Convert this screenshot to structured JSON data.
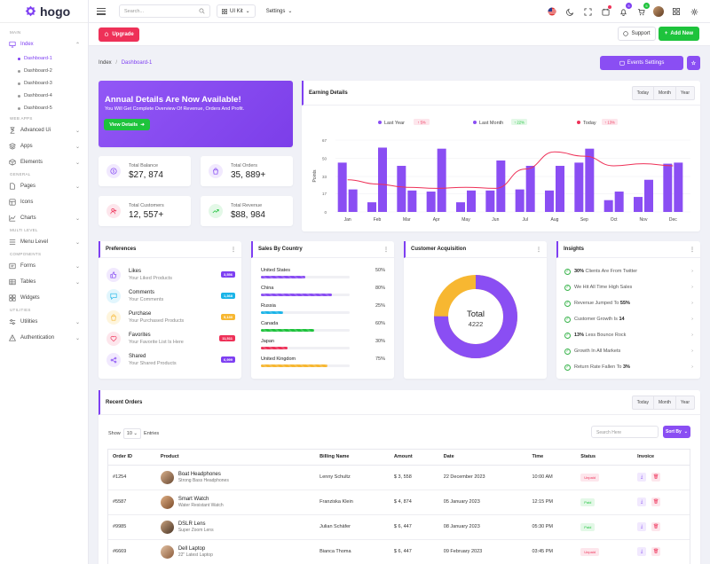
{
  "brand": {
    "name": "hogo"
  },
  "sidebar": {
    "sections": {
      "main": "MAIN",
      "web_apps": "WEB APPS",
      "general": "GENERAL",
      "multi_level": "MULTI LEVEL",
      "components": "COMPONENTS",
      "utilities": "UTILITIES"
    },
    "index": "Index",
    "dashboards": [
      "Dashboard-1",
      "Dashboard-2",
      "Dashboard-3",
      "Dashboard-4",
      "Dashboard-5"
    ],
    "advanced_ui": "Advanced Ui",
    "apps": "Apps",
    "elements": "Elements",
    "pages": "Pages",
    "icons": "Icons",
    "charts": "Charts",
    "menu_level": "Menu Level",
    "forms": "Forms",
    "tables": "Tables",
    "widgets": "Widgets",
    "utilities": "Utilities",
    "authentication": "Authentication"
  },
  "header": {
    "search_placeholder": "Search...",
    "ui_kit": "UI Kit",
    "settings": "Settings",
    "notif_badge": "5",
    "cart_badge": "5"
  },
  "subheader": {
    "upgrade": "Upgrade",
    "support": "Support",
    "add_new": "Add New"
  },
  "breadcrumb": {
    "root": "Index",
    "current": "Dashboard-1"
  },
  "events_settings": "Events Settings",
  "banner": {
    "title": "Annual Details Are Now Available!",
    "subtitle": "You Will Get Complete Overview Of Revenue, Orders And Profit.",
    "button": "View Details"
  },
  "stats": [
    {
      "label": "Total Balance",
      "value": "$27, 874"
    },
    {
      "label": "Total Orders",
      "value": "35, 889+"
    },
    {
      "label": "Total Customers",
      "value": "12, 557+"
    },
    {
      "label": "Total Revenue",
      "value": "$88, 984"
    }
  ],
  "earning": {
    "title": "Earning Details",
    "tabs": [
      "Today",
      "Month",
      "Year"
    ]
  },
  "chart_data": {
    "type": "bar",
    "title": "Earning Details",
    "ylabel": "Points",
    "xlabel": "",
    "ylim": [
      0,
      67
    ],
    "yticks": [
      0,
      17,
      33,
      50,
      67
    ],
    "categories": [
      "Jan",
      "Feb",
      "Mar",
      "Apr",
      "May",
      "Jun",
      "Jul",
      "Aug",
      "Sep",
      "Oct",
      "Nov",
      "Dec"
    ],
    "series": [
      {
        "name": "Last Year",
        "badge": "↑ 5%",
        "type": "bar",
        "values": [
          46,
          9,
          43,
          19,
          9,
          20,
          21,
          20,
          46,
          11,
          14,
          45
        ]
      },
      {
        "name": "Last Month",
        "badge": "↑ 22%",
        "type": "bar",
        "values": [
          21,
          60,
          20,
          59,
          20,
          48,
          43,
          43,
          59,
          19,
          30,
          46
        ]
      },
      {
        "name": "Today",
        "badge": "↑ 13%",
        "type": "line",
        "values": [
          30,
          26,
          23,
          22,
          23,
          22,
          40,
          56,
          52,
          43,
          45,
          43
        ]
      }
    ]
  },
  "preferences": {
    "title": "Preferences",
    "items": [
      {
        "title": "Likes",
        "sub": "Your Liked Products",
        "badge": "3,556"
      },
      {
        "title": "Comments",
        "sub": "Your Comments",
        "badge": "1,368"
      },
      {
        "title": "Purchase",
        "sub": "Your Purchased Products",
        "badge": "5,130"
      },
      {
        "title": "Favorites",
        "sub": "Your Favorite List Is Here",
        "badge": "11,511"
      },
      {
        "title": "Shared",
        "sub": "Your Shared Products",
        "badge": "6,999"
      }
    ]
  },
  "sales_country": {
    "title": "Sales By Country",
    "items": [
      {
        "name": "United States",
        "pct": "50%",
        "value": 50
      },
      {
        "name": "China",
        "pct": "80%",
        "value": 80
      },
      {
        "name": "Russia",
        "pct": "25%",
        "value": 25
      },
      {
        "name": "Canada",
        "pct": "60%",
        "value": 60
      },
      {
        "name": "Japan",
        "pct": "30%",
        "value": 30
      },
      {
        "name": "United Kingdom",
        "pct": "75%",
        "value": 75
      }
    ]
  },
  "acquisition": {
    "title": "Customer Acquisition",
    "total_label": "Total",
    "total_value": "4222",
    "purple_pct": 75,
    "yellow_pct": 25
  },
  "insights": {
    "title": "Insights",
    "items": [
      {
        "bold": "30%",
        "text": " Clients Are From Twitter"
      },
      {
        "bold": "",
        "text": "We Hit All Time High Sales"
      },
      {
        "bold": "",
        "text": "Revenue Jumped To ",
        "tail": "55%"
      },
      {
        "bold": "",
        "text": "Customer Growth Is ",
        "tail": "14"
      },
      {
        "bold": "13%",
        "text": " Less Bounce Rock"
      },
      {
        "bold": "",
        "text": "Growth In All Markets"
      },
      {
        "bold": "",
        "text": "Return Rate Fallen To ",
        "tail": "3%"
      }
    ]
  },
  "orders": {
    "title": "Recent Orders",
    "tabs": [
      "Today",
      "Month",
      "Year"
    ],
    "show": "Show",
    "entries_value": "10",
    "entries": "Entries",
    "search_placeholder": "Search Here",
    "sort": "Sort By",
    "columns": [
      "Order ID",
      "Product",
      "Billing Name",
      "Amount",
      "Date",
      "Time",
      "Status",
      "Invoice"
    ],
    "rows": [
      {
        "id": "#1254",
        "product": "Boat Headphones",
        "sub": "Strong Bass Headphones",
        "billing": "Lenny Schultz",
        "amount": "$ 3, 558",
        "date": "22 December 2023",
        "time": "10:00 AM",
        "status": "Unpaid"
      },
      {
        "id": "#5587",
        "product": "Smart Watch",
        "sub": "Water Resistant Watch",
        "billing": "Franziska Klein",
        "amount": "$ 4, 874",
        "date": "05 January 2023",
        "time": "12:15 PM",
        "status": "Paid"
      },
      {
        "id": "#9985",
        "product": "DSLR Lens",
        "sub": "Super Zoom Lens",
        "billing": "Julian Schäfer",
        "amount": "$ 6, 447",
        "date": "08 January 2023",
        "time": "05:30 PM",
        "status": "Paid"
      },
      {
        "id": "#6669",
        "product": "Dell Laptop",
        "sub": "22\" Latest Laptop",
        "billing": "Bianca Thoma",
        "amount": "$ 6, 447",
        "date": "09 February 2023",
        "time": "03:45 PM",
        "status": "Unpaid"
      }
    ]
  },
  "colors": {
    "primary": "#7e3ff2",
    "danger": "#ee3158",
    "success": "#1ec33c",
    "warning": "#f7b731",
    "info": "#1ab4e8"
  }
}
